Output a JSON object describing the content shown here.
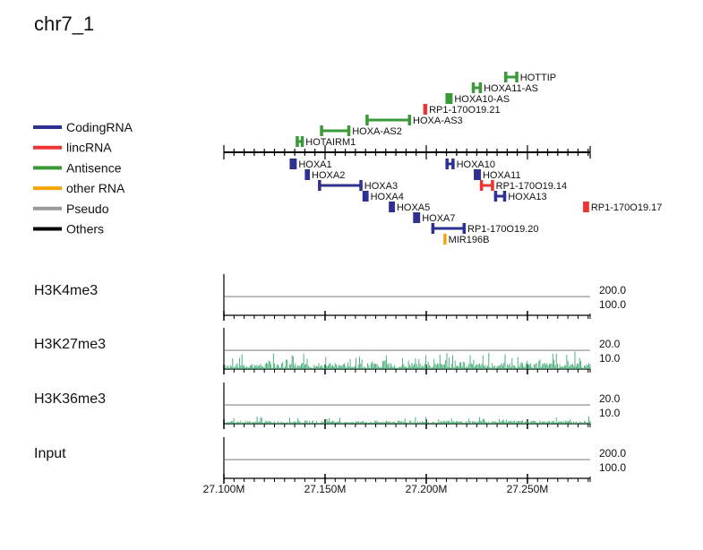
{
  "title": "chr7_1",
  "legend": [
    {
      "label": "CodingRNA",
      "color": "#2e3192"
    },
    {
      "label": "lincRNA",
      "color": "#ee3333"
    },
    {
      "label": "Antisence",
      "color": "#3a9a3a"
    },
    {
      "label": "other RNA",
      "color": "#f5a300"
    },
    {
      "label": "Pseudo",
      "color": "#999999"
    },
    {
      "label": "Others",
      "color": "#000000"
    }
  ],
  "chart_data": {
    "type": "genome_browser",
    "region": "chr7_1",
    "x_range_M": [
      27.1,
      27.281
    ],
    "x_ticks_M": [
      27.1,
      27.15,
      27.2,
      27.25
    ],
    "x_tick_labels": [
      "27.100M",
      "27.150M",
      "27.200M",
      "27.250M"
    ],
    "genes_above": [
      {
        "name": "HOTTIP",
        "type": "Antisence",
        "start": 27.2385,
        "end": 27.2455
      },
      {
        "name": "HOXA11-AS",
        "type": "Antisence",
        "start": 27.2225,
        "end": 27.2275
      },
      {
        "name": "HOXA10-AS",
        "type": "Antisence",
        "start": 27.2095,
        "end": 27.213
      },
      {
        "name": "RP1-170O19.21",
        "type": "lincRNA",
        "start": 27.1985,
        "end": 27.2005
      },
      {
        "name": "HOXA-AS3",
        "type": "Antisence",
        "start": 27.17,
        "end": 27.1925
      },
      {
        "name": "HOXA-AS2",
        "type": "Antisence",
        "start": 27.1475,
        "end": 27.1625
      },
      {
        "name": "HOTAIRM1",
        "type": "Antisence",
        "start": 27.1355,
        "end": 27.1395
      }
    ],
    "genes_below": [
      {
        "name": "HOXA1",
        "type": "CodingRNA",
        "start": 27.1325,
        "end": 27.136
      },
      {
        "name": "HOXA2",
        "type": "CodingRNA",
        "start": 27.14,
        "end": 27.1425
      },
      {
        "name": "HOXA3",
        "type": "CodingRNA",
        "start": 27.1465,
        "end": 27.1685
      },
      {
        "name": "HOXA4",
        "type": "CodingRNA",
        "start": 27.1685,
        "end": 27.1715
      },
      {
        "name": "HOXA5",
        "type": "CodingRNA",
        "start": 27.1815,
        "end": 27.1845
      },
      {
        "name": "HOXA7",
        "type": "CodingRNA",
        "start": 27.1935,
        "end": 27.197
      },
      {
        "name": "RP1-170O19.20",
        "type": "CodingRNA",
        "start": 27.2025,
        "end": 27.2195
      },
      {
        "name": "MIR196B",
        "type": "other RNA",
        "start": 27.2085,
        "end": 27.21
      },
      {
        "name": "HOXA10",
        "type": "CodingRNA",
        "start": 27.2095,
        "end": 27.214
      },
      {
        "name": "HOXA11",
        "type": "CodingRNA",
        "start": 27.2235,
        "end": 27.227
      },
      {
        "name": "RP1-170O19.14",
        "type": "lincRNA",
        "start": 27.2265,
        "end": 27.2335
      },
      {
        "name": "HOXA13",
        "type": "CodingRNA",
        "start": 27.2335,
        "end": 27.2395
      },
      {
        "name": "RP1-170O19.17",
        "type": "lincRNA",
        "start": 27.2775,
        "end": 27.2805
      }
    ],
    "tracks": [
      {
        "name": "H3K4me3",
        "scale_labels": [
          "200.0",
          "100.0"
        ],
        "ymax": 200,
        "ref": 100,
        "signal": "none"
      },
      {
        "name": "H3K27me3",
        "scale_labels": [
          "20.0",
          "10.0"
        ],
        "ymax": 20,
        "ref": 10,
        "signal": "high",
        "color": "#3aaa70"
      },
      {
        "name": "H3K36me3",
        "scale_labels": [
          "20.0",
          "10.0"
        ],
        "ymax": 20,
        "ref": 10,
        "signal": "low",
        "color": "#3aaa70"
      },
      {
        "name": "Input",
        "scale_labels": [
          "200.0",
          "100.0"
        ],
        "ymax": 200,
        "ref": 100,
        "signal": "none"
      }
    ]
  }
}
